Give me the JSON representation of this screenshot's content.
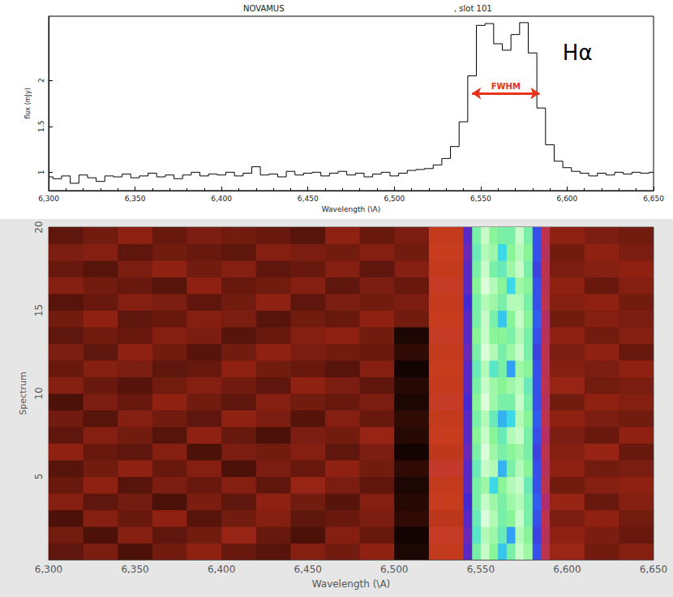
{
  "chart_data": [
    {
      "type": "line",
      "title": "NOVAMUS",
      "subtitle": ", slot 101",
      "x_label": "Wavelength (\\A)",
      "y_label": "flux (mJy)",
      "line_style": "steps",
      "color": "#000000",
      "grid": false,
      "x": [
        6300,
        6305,
        6310,
        6315,
        6320,
        6325,
        6330,
        6335,
        6340,
        6345,
        6350,
        6355,
        6360,
        6365,
        6370,
        6375,
        6380,
        6385,
        6390,
        6395,
        6400,
        6405,
        6410,
        6415,
        6420,
        6425,
        6430,
        6435,
        6440,
        6445,
        6450,
        6455,
        6460,
        6465,
        6470,
        6475,
        6480,
        6485,
        6490,
        6495,
        6500,
        6505,
        6510,
        6515,
        6520,
        6525,
        6530,
        6535,
        6540,
        6545,
        6550,
        6555,
        6560,
        6565,
        6570,
        6575,
        6580,
        6585,
        6590,
        6595,
        6600,
        6605,
        6610,
        6615,
        6620,
        6625,
        6630,
        6635,
        6640,
        6645,
        6650
      ],
      "values": [
        0.95,
        0.93,
        0.96,
        0.88,
        0.97,
        0.94,
        0.9,
        0.96,
        0.95,
        0.98,
        0.94,
        0.96,
        0.99,
        0.95,
        0.97,
        0.93,
        0.97,
        1.0,
        0.96,
        0.98,
        0.97,
        1.0,
        0.96,
        0.99,
        1.06,
        0.97,
        0.98,
        0.95,
        1.01,
        0.97,
        0.99,
        1.0,
        0.96,
        0.99,
        1.01,
        0.97,
        0.99,
        0.95,
        0.98,
        1.0,
        0.96,
        0.99,
        1.02,
        1.03,
        1.04,
        1.08,
        1.15,
        1.28,
        1.55,
        2.05,
        2.6,
        2.62,
        2.4,
        2.33,
        2.5,
        2.63,
        2.3,
        1.7,
        1.3,
        1.12,
        1.05,
        1.01,
        0.99,
        0.96,
        0.99,
        0.97,
        1.0,
        0.98,
        1.0,
        0.99,
        1.0
      ],
      "xlim": [
        6300,
        6650
      ],
      "xticks": [
        6300,
        6350,
        6400,
        6450,
        6500,
        6550,
        6600,
        6650
      ],
      "ylim": [
        0.8,
        2.7
      ],
      "yticks": [
        1,
        1.5,
        2
      ],
      "annotations": [
        {
          "text": "Hα",
          "x": 6606,
          "y": 2.3
        },
        {
          "text": "FWHM",
          "x": [
            6545,
            6584
          ],
          "y": 1.86,
          "color": "#e8331c"
        }
      ]
    },
    {
      "type": "heatmap",
      "x_label": "Wavelength (\\A)",
      "y_label": "Spectrum",
      "x_edges": [
        6300,
        6320,
        6340,
        6360,
        6380,
        6400,
        6420,
        6440,
        6460,
        6480,
        6500,
        6520,
        6540,
        6545,
        6550,
        6555,
        6560,
        6565,
        6570,
        6575,
        6580,
        6585,
        6590,
        6610,
        6630,
        6650
      ],
      "y_edges": [
        0,
        1,
        2,
        3,
        4,
        5,
        6,
        7,
        8,
        9,
        10,
        11,
        12,
        13,
        14,
        15,
        16,
        17,
        18,
        19,
        20
      ],
      "cells": [
        [
          0.95,
          0.98,
          0.93,
          0.97,
          1.0,
          0.96,
          0.94,
          0.99,
          0.97,
          1.0,
          0.88,
          1.12,
          1.5,
          2.3,
          2.5,
          2.35,
          2.05,
          2.3,
          2.5,
          2.4,
          1.7,
          1.2,
          1.02,
          0.97,
          0.99
        ],
        [
          0.97,
          0.93,
          0.99,
          0.95,
          0.97,
          1.01,
          0.96,
          0.93,
          0.99,
          0.96,
          0.87,
          1.14,
          1.45,
          2.2,
          2.45,
          2.4,
          2.25,
          1.95,
          2.45,
          2.35,
          1.65,
          1.22,
          1.0,
          0.98,
          0.96
        ],
        [
          0.93,
          0.99,
          0.96,
          1.0,
          0.94,
          0.97,
          0.99,
          0.95,
          0.96,
          0.98,
          0.9,
          1.1,
          1.5,
          2.25,
          2.55,
          2.45,
          2.3,
          2.35,
          2.5,
          2.3,
          1.7,
          1.2,
          0.98,
          1.0,
          0.97
        ],
        [
          0.99,
          0.95,
          0.97,
          0.93,
          0.98,
          0.95,
          1.0,
          0.97,
          0.94,
          0.99,
          0.89,
          1.13,
          1.55,
          2.3,
          2.5,
          2.4,
          2.3,
          2.4,
          2.45,
          2.3,
          1.75,
          1.25,
          1.01,
          0.96,
          0.99
        ],
        [
          0.96,
          1.0,
          0.94,
          0.98,
          0.96,
          0.99,
          0.95,
          1.01,
          0.98,
          0.95,
          0.88,
          1.12,
          1.5,
          2.3,
          2.4,
          2.1,
          2.35,
          2.45,
          2.5,
          2.25,
          1.7,
          1.2,
          0.97,
          0.99,
          1.0
        ],
        [
          0.94,
          0.97,
          1.0,
          0.96,
          0.99,
          0.93,
          0.98,
          0.96,
          1.0,
          0.97,
          0.9,
          1.15,
          1.5,
          2.25,
          2.5,
          2.45,
          2.0,
          2.3,
          2.45,
          2.35,
          1.7,
          1.22,
          1.0,
          0.97,
          0.98
        ],
        [
          1.0,
          0.96,
          0.95,
          0.99,
          0.93,
          0.98,
          0.97,
          0.99,
          0.95,
          0.98,
          0.87,
          1.11,
          1.45,
          2.3,
          2.55,
          2.4,
          2.3,
          2.35,
          2.4,
          2.3,
          1.65,
          1.2,
          0.99,
          1.01,
          0.96
        ],
        [
          0.95,
          0.99,
          0.97,
          0.94,
          1.0,
          0.96,
          0.93,
          0.98,
          0.97,
          1.01,
          0.89,
          1.13,
          1.5,
          2.35,
          2.5,
          2.35,
          2.25,
          2.45,
          2.5,
          2.3,
          1.7,
          1.23,
          0.98,
          0.96,
          1.0
        ],
        [
          0.97,
          0.94,
          0.99,
          0.97,
          0.95,
          1.0,
          0.98,
          0.94,
          0.99,
          0.96,
          0.9,
          1.12,
          1.5,
          2.3,
          2.45,
          2.25,
          2.0,
          2.1,
          2.45,
          2.35,
          1.75,
          1.2,
          1.0,
          0.98,
          0.97
        ],
        [
          0.93,
          0.98,
          0.96,
          1.0,
          0.97,
          0.95,
          0.99,
          0.97,
          0.96,
          0.98,
          0.88,
          1.14,
          1.55,
          2.35,
          2.55,
          2.4,
          2.3,
          2.3,
          2.5,
          2.3,
          1.7,
          1.22,
          0.97,
          1.0,
          0.99
        ],
        [
          0.99,
          0.96,
          0.94,
          0.97,
          0.99,
          0.97,
          0.95,
          1.0,
          0.98,
          0.95,
          0.89,
          1.12,
          1.5,
          2.3,
          2.5,
          2.4,
          2.35,
          2.4,
          2.45,
          2.25,
          1.7,
          1.2,
          1.01,
          0.97,
          0.98
        ],
        [
          0.96,
          0.99,
          0.98,
          0.95,
          0.96,
          1.0,
          0.97,
          0.96,
          0.94,
          0.99,
          0.87,
          1.13,
          1.5,
          2.25,
          2.45,
          2.2,
          2.3,
          1.95,
          2.4,
          2.35,
          1.7,
          1.21,
          0.99,
          0.98,
          1.0
        ],
        [
          0.98,
          0.95,
          1.0,
          0.97,
          0.94,
          0.97,
          1.0,
          0.98,
          0.97,
          0.96,
          0.9,
          1.12,
          1.45,
          2.3,
          2.55,
          2.45,
          2.3,
          2.4,
          2.5,
          2.3,
          1.65,
          1.2,
          0.98,
          1.0,
          0.96
        ],
        [
          0.95,
          0.97,
          0.96,
          0.99,
          0.98,
          0.94,
          0.96,
          0.99,
          1.0,
          0.97,
          0.88,
          1.14,
          1.5,
          2.35,
          2.5,
          2.35,
          2.35,
          2.3,
          2.45,
          2.3,
          1.7,
          1.22,
          1.0,
          0.97,
          0.99
        ],
        [
          0.97,
          1.0,
          0.95,
          0.96,
          0.99,
          0.98,
          0.94,
          0.97,
          0.96,
          1.0,
          0.97,
          1.13,
          1.5,
          2.3,
          2.5,
          2.3,
          2.05,
          2.35,
          2.5,
          2.35,
          1.75,
          1.23,
          0.97,
          0.99,
          0.98
        ],
        [
          0.94,
          0.96,
          0.99,
          0.98,
          0.95,
          0.97,
          1.0,
          0.95,
          0.98,
          0.97,
          0.98,
          1.12,
          1.55,
          2.3,
          2.45,
          2.4,
          2.3,
          2.45,
          2.45,
          2.3,
          1.7,
          1.2,
          0.99,
          1.0,
          0.97
        ],
        [
          0.99,
          0.97,
          0.96,
          0.94,
          1.0,
          0.96,
          0.97,
          0.99,
          0.95,
          0.98,
          0.96,
          1.14,
          1.5,
          2.35,
          2.55,
          2.45,
          2.35,
          2.1,
          2.4,
          2.35,
          1.7,
          1.21,
          1.0,
          0.96,
          0.99
        ],
        [
          0.96,
          0.94,
          0.98,
          1.0,
          0.97,
          0.99,
          0.95,
          0.96,
          0.99,
          0.95,
          0.99,
          1.12,
          1.5,
          2.3,
          2.5,
          2.3,
          2.25,
          2.4,
          2.5,
          2.3,
          1.65,
          1.2,
          0.98,
          0.99,
          1.0
        ],
        [
          0.98,
          0.99,
          0.95,
          0.97,
          0.96,
          0.95,
          0.99,
          0.98,
          0.97,
          0.99,
          0.97,
          1.13,
          1.45,
          2.25,
          2.45,
          2.4,
          2.1,
          2.35,
          2.45,
          2.35,
          1.7,
          1.22,
          0.97,
          1.0,
          0.98
        ],
        [
          0.95,
          0.97,
          1.0,
          0.96,
          0.98,
          0.97,
          0.96,
          0.94,
          1.0,
          0.96,
          0.98,
          1.12,
          1.5,
          2.3,
          2.5,
          2.35,
          2.3,
          2.3,
          2.5,
          2.3,
          1.7,
          1.2,
          1.0,
          0.98,
          0.97
        ]
      ],
      "zlim": [
        0.85,
        2.6
      ],
      "xlim": [
        6300,
        6650
      ],
      "xticks": [
        6300,
        6350,
        6400,
        6450,
        6500,
        6550,
        6600,
        6650
      ],
      "ylim": [
        0,
        20
      ],
      "yticks": [
        5,
        10,
        15,
        20
      ]
    }
  ]
}
